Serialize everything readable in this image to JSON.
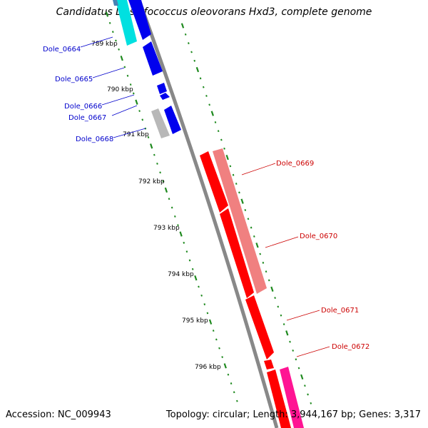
{
  "title": "Candidatus Desulfococcus oleovorans Hxd3, complete genome",
  "accession_text": "Accession: NC_009943",
  "topology_text": "Topology: circular; Length: 3,944,167 bp; Genes: 3,317",
  "colors": {
    "backbone": "#888888",
    "tick": "#1f8a1f",
    "left_label": "#0000cc",
    "right_label": "#cc0000",
    "blue_gene": "#0000ee",
    "cyan_gene": "#00e0e0",
    "gray_gene": "#b8b8b8",
    "red_gene": "#ff0000",
    "salmon_gene": "#f08080",
    "pink_gene": "#ff1493"
  },
  "scale_labels": [
    "789 kbp",
    "790 kbp",
    "791 kbp",
    "792 kbp",
    "793 kbp",
    "794 kbp",
    "795 kbp",
    "796 kbp"
  ],
  "genes_left": [
    {
      "label": "Dole_0664"
    },
    {
      "label": "Dole_0665"
    },
    {
      "label": "Dole_0666"
    },
    {
      "label": "Dole_0667"
    },
    {
      "label": "Dole_0668"
    }
  ],
  "genes_right": [
    {
      "label": "Dole_0669"
    },
    {
      "label": "Dole_0670"
    },
    {
      "label": "Dole_0671"
    },
    {
      "label": "Dole_0672"
    }
  ]
}
